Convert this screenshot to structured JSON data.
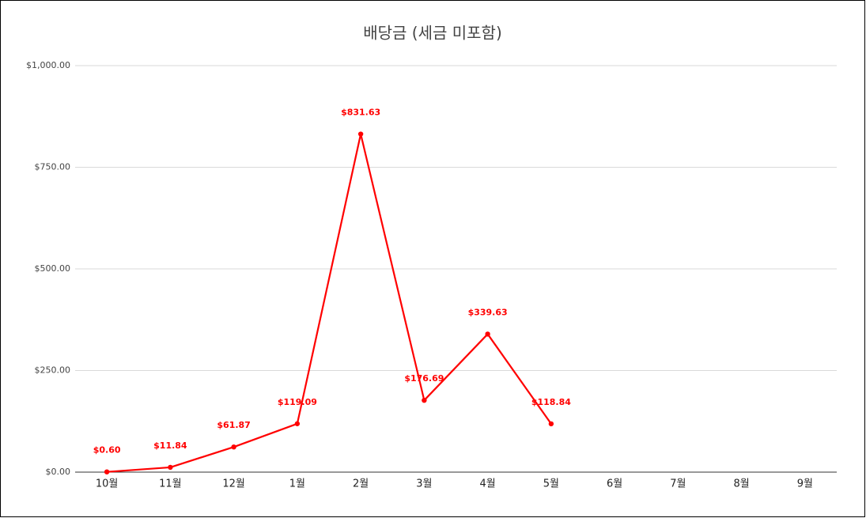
{
  "chart_data": {
    "type": "line",
    "title": "배당금 (세금 미포함)",
    "categories": [
      "10월",
      "11월",
      "12월",
      "1월",
      "2월",
      "3월",
      "4월",
      "5월",
      "6월",
      "7월",
      "8월",
      "9월"
    ],
    "series": [
      {
        "name": "배당금",
        "color": "#ff0000",
        "values": [
          0.6,
          11.84,
          61.87,
          119.09,
          831.63,
          176.69,
          339.63,
          118.84,
          null,
          null,
          null,
          null
        ],
        "value_labels": [
          "$0.60",
          "$11.84",
          "$61.87",
          "$119.09",
          "$831.63",
          "$176.69",
          "$339.63",
          "$118.84",
          null,
          null,
          null,
          null
        ]
      }
    ],
    "ylim": [
      0,
      1000
    ],
    "yticks": [
      {
        "value": 0,
        "label": "$0.00"
      },
      {
        "value": 250,
        "label": "$250.00"
      },
      {
        "value": 500,
        "label": "$500.00"
      },
      {
        "value": 750,
        "label": "$750.00"
      },
      {
        "value": 1000,
        "label": "$1,000.00"
      }
    ],
    "grid": true
  }
}
